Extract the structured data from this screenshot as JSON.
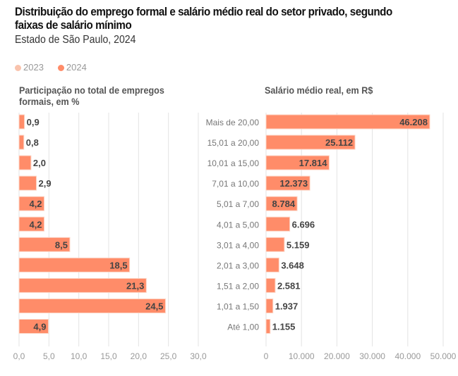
{
  "title": "Distribuição do emprego formal e salário médio real do setor privado, segundo faixas de salário mínimo",
  "subtitle": "Estado de São Paulo, 2024",
  "legend": [
    {
      "label": "2023",
      "color": "#f9c3ad"
    },
    {
      "label": "2024",
      "color": "#ff8c69"
    }
  ],
  "chart_data": [
    {
      "type": "bar",
      "orientation": "horizontal",
      "title": "Participação no total de empregos formais, em %",
      "categories": [
        "Mais de 20,00",
        "15,01 a 20,00",
        "10,01 a 15,00",
        "7,01 a 10,00",
        "5,01 a 7,00",
        "4,01 a 5,00",
        "3,01 a 4,00",
        "2,01 a 3,00",
        "1,51 a 2,00",
        "1,01 a 1,50",
        "Até 1,00"
      ],
      "series": [
        {
          "name": "2024",
          "values": [
            0.9,
            0.8,
            2.0,
            2.9,
            4.2,
            4.2,
            8.5,
            18.5,
            21.3,
            24.5,
            4.9
          ],
          "labels": [
            "0,9",
            "0,8",
            "2,0",
            "2,9",
            "4,2",
            "4,2",
            "8,5",
            "18,5",
            "21,3",
            "24,5",
            "4,9"
          ],
          "color": "#ff8c69"
        }
      ],
      "xlim": [
        0,
        30
      ],
      "ticks": [
        "0,0",
        "5,0",
        "10,0",
        "15,0",
        "20,0",
        "25,0",
        "30,0"
      ],
      "grid": true
    },
    {
      "type": "bar",
      "orientation": "horizontal",
      "title": "Salário médio real, em R$",
      "categories": [
        "Mais de 20,00",
        "15,01 a 20,00",
        "10,01 a 15,00",
        "7,01 a 10,00",
        "5,01 a 7,00",
        "4,01 a 5,00",
        "3,01 a 4,00",
        "2,01 a 3,00",
        "1,51 a 2,00",
        "1,01 a 1,50",
        "Até 1,00"
      ],
      "series": [
        {
          "name": "2024",
          "values": [
            46208,
            25112,
            17814,
            12373,
            8784,
            6696,
            5159,
            3648,
            2581,
            1937,
            1155
          ],
          "labels": [
            "46.208",
            "25.112",
            "17.814",
            "12.373",
            "8.784",
            "6.696",
            "5.159",
            "3.648",
            "2.581",
            "1.937",
            "1.155"
          ],
          "color": "#ff8c69"
        }
      ],
      "xlim": [
        0,
        50000
      ],
      "ticks": [
        "0",
        "10.000",
        "20.000",
        "30.000",
        "40.000",
        "50.000"
      ],
      "grid": true
    }
  ]
}
